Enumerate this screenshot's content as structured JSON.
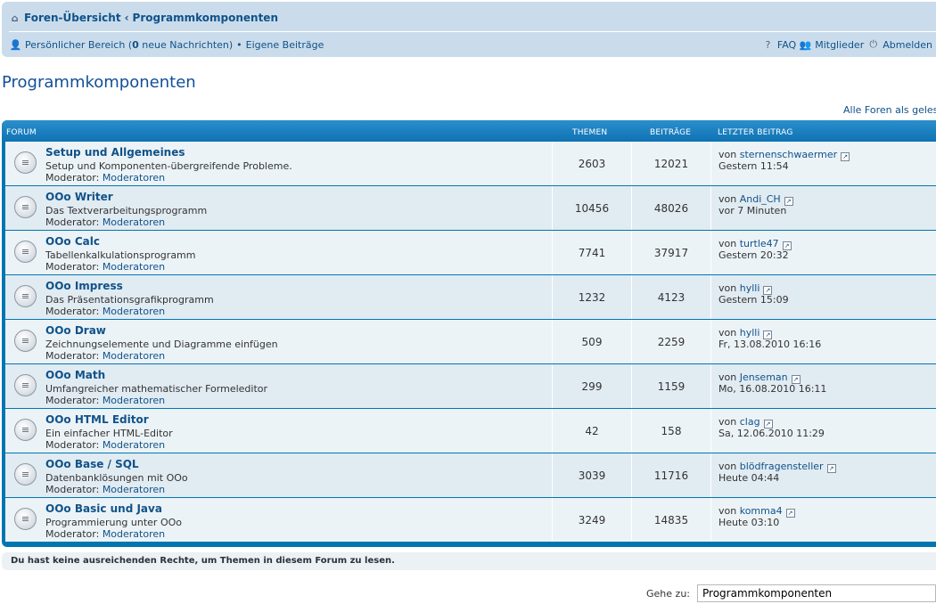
{
  "breadcrumb": {
    "home_icon": "home-icon",
    "home": "Foren-Übersicht",
    "separator": "‹",
    "current": "Programmkomponenten"
  },
  "userbar": {
    "personal_area": "Persönlicher Bereich (",
    "new_count": "0",
    "new_messages": " neue Nachrichten)",
    "bullet": "•",
    "own_posts": "Eigene Beiträge",
    "faq": "FAQ",
    "members": "Mitglieder",
    "logout": "Abmelden"
  },
  "page": {
    "title": "Programmkomponenten",
    "mark_read": "Alle Foren als gelesen markieren"
  },
  "table": {
    "headers": {
      "forum": "FORUM",
      "topics": "THEMEN",
      "posts": "BEITRÄGE",
      "last": "LETZTER BEITRAG"
    },
    "moderator_label": "Moderator: ",
    "moderator_link": "Moderatoren",
    "by": "von ",
    "rows": [
      {
        "title": "Setup und Allgemeines",
        "desc": "Setup und Komponenten-übergreifende Probleme.",
        "topics": "2603",
        "posts": "12021",
        "last_user": "sternenschwaermer",
        "last_time": "Gestern 11:54"
      },
      {
        "title": "OOo Writer",
        "desc": "Das Textverarbeitungsprogramm",
        "topics": "10456",
        "posts": "48026",
        "last_user": "Andi_CH",
        "last_time": "vor 7 Minuten"
      },
      {
        "title": "OOo Calc",
        "desc": "Tabellenkalkulationsprogramm",
        "topics": "7741",
        "posts": "37917",
        "last_user": "turtle47",
        "last_time": "Gestern 20:32"
      },
      {
        "title": "OOo Impress",
        "desc": "Das Präsentationsgrafikprogramm",
        "topics": "1232",
        "posts": "4123",
        "last_user": "hylli",
        "last_time": "Gestern 15:09"
      },
      {
        "title": "OOo Draw",
        "desc": "Zeichnungselemente und Diagramme einfügen",
        "topics": "509",
        "posts": "2259",
        "last_user": "hylli",
        "last_time": "Fr, 13.08.2010 16:16"
      },
      {
        "title": "OOo Math",
        "desc": "Umfangreicher mathematischer Formeleditor",
        "topics": "299",
        "posts": "1159",
        "last_user": "Jenseman",
        "last_time": "Mo, 16.08.2010 16:11"
      },
      {
        "title": "OOo HTML Editor",
        "desc": "Ein einfacher HTML-Editor",
        "topics": "42",
        "posts": "158",
        "last_user": "clag",
        "last_time": "Sa, 12.06.2010 11:29"
      },
      {
        "title": "OOo Base / SQL",
        "desc": "Datenbanklösungen mit OOo",
        "topics": "3039",
        "posts": "11716",
        "last_user": "blödfragensteller",
        "last_time": "Heute 04:44"
      },
      {
        "title": "OOo Basic und Java",
        "desc": "Programmierung unter OOo",
        "topics": "3249",
        "posts": "14835",
        "last_user": "komma4",
        "last_time": "Heute 03:10"
      }
    ]
  },
  "notice": "Du hast keine ausreichenden Rechte, um Themen in diesem Forum zu lesen.",
  "jumpbox": {
    "label": "Gehe zu:",
    "selected": "Programmkomponenten"
  },
  "colors": {
    "header_bg": "#cadceb",
    "table_blue": "#0076b1",
    "row_bg": "#ecf3f7",
    "row_alt_bg": "#e1ebf2",
    "link": "#105289"
  }
}
